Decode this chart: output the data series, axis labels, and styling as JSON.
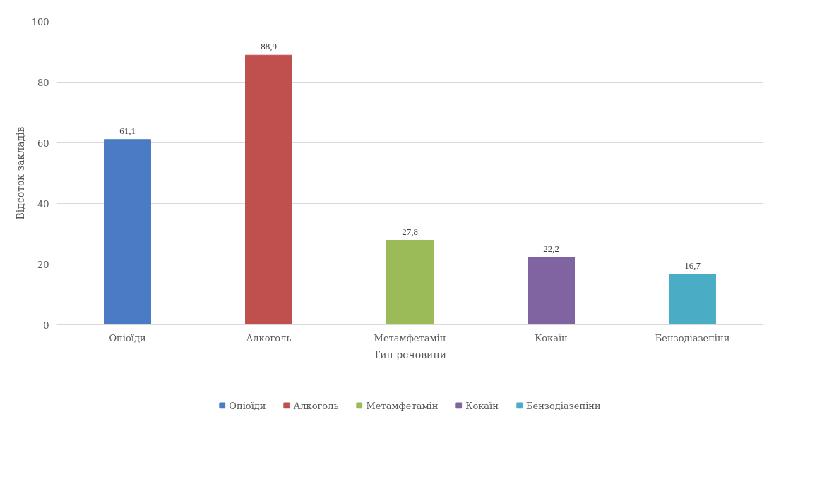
{
  "chart_data": {
    "type": "bar",
    "xlabel": "Тип речовини",
    "ylabel": "Відсоток закладів",
    "categories": [
      "Опіоїди",
      "Алкоголь",
      "Метамфетамін",
      "Кокаїн",
      "Бензодіазепіни"
    ],
    "series": [
      {
        "name": "Опіоїди",
        "color": "#4a7bc4",
        "values": [
          61.1,
          null,
          null,
          null,
          null
        ],
        "value_labels": [
          "61,1",
          null,
          null,
          null,
          null
        ]
      },
      {
        "name": "Алкоголь",
        "color": "#c0504d",
        "values": [
          null,
          88.9,
          null,
          null,
          null
        ],
        "value_labels": [
          null,
          "88,9",
          null,
          null,
          null
        ]
      },
      {
        "name": "Метамфетамін",
        "color": "#9bbb59",
        "values": [
          null,
          null,
          27.8,
          null,
          null
        ],
        "value_labels": [
          null,
          null,
          "27,8",
          null,
          null
        ]
      },
      {
        "name": "Кокаїн",
        "color": "#8064a2",
        "values": [
          null,
          null,
          null,
          22.2,
          null
        ],
        "value_labels": [
          null,
          null,
          null,
          "22,2",
          null
        ]
      },
      {
        "name": "Бензодіазепіни",
        "color": "#4bacc6",
        "values": [
          null,
          null,
          null,
          null,
          16.7
        ],
        "value_labels": [
          null,
          null,
          null,
          null,
          "16,7"
        ]
      }
    ],
    "ylim": [
      0,
      100
    ],
    "yticks": [
      0,
      20,
      40,
      60,
      80,
      100
    ],
    "grid": "y",
    "legend": "bottom"
  }
}
